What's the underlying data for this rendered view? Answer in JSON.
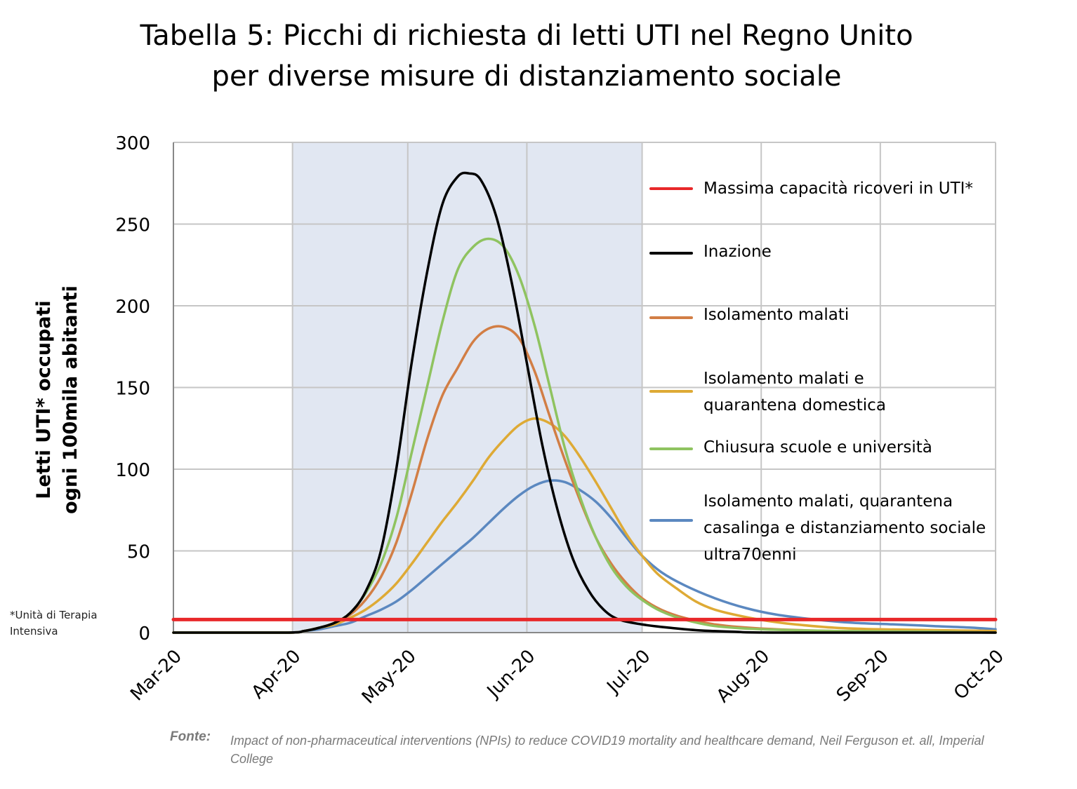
{
  "title": {
    "line1": "Tabella 5: Picchi di richiesta di letti UTI nel Regno Unito",
    "line2": "per diverse misure di distanziamento sociale"
  },
  "footnote": {
    "line1": "*Unità di Terapia",
    "line2": "Intensiva"
  },
  "source": {
    "label": "Fonte:",
    "text": "Impact of non-pharmaceutical interventions (NPIs) to reduce COVID19 mortality and healthcare demand, Neil Ferguson et. all, Imperial College"
  },
  "colors": {
    "capacity": "#e8282a",
    "inazione": "#000000",
    "isolamento": "#d27e45",
    "quarantena": "#deaa35",
    "scuole": "#8fc360",
    "anziani": "#5b88c0",
    "shade": "#e1e7f2",
    "grid": "#c6c6c6"
  },
  "chart_data": {
    "type": "line",
    "title": "Tabella 5: Picchi di richiesta di letti UTI nel Regno Unito per diverse misure di distanziamento sociale",
    "ylabel": "Letti UTI* occupati ogni 100mila abitanti",
    "xlabel": "",
    "ylim": [
      0,
      300
    ],
    "yticks": [
      0,
      50,
      100,
      150,
      200,
      250,
      300
    ],
    "xticks": [
      "Mar-20",
      "Apr-20",
      "May-20",
      "Jun-20",
      "Jul-20",
      "Aug-20",
      "Sep-20",
      "Oct-20"
    ],
    "shaded_range": [
      "Apr-01",
      "Jul-01"
    ],
    "grid": true,
    "legend_position": "right",
    "series": [
      {
        "name": "Massima capacità ricoveri in UTI*",
        "key": "capacity",
        "points": [
          [
            "Mar-01",
            8
          ],
          [
            "Oct-01",
            8
          ]
        ]
      },
      {
        "name": "Inazione",
        "key": "inazione",
        "points": [
          [
            "Mar-01",
            0
          ],
          [
            "Mar-30",
            0
          ],
          [
            "Apr-04",
            1
          ],
          [
            "Apr-08",
            3
          ],
          [
            "Apr-12",
            6
          ],
          [
            "Apr-16",
            12
          ],
          [
            "Apr-20",
            25
          ],
          [
            "Apr-24",
            50
          ],
          [
            "Apr-28",
            100
          ],
          [
            "May-02",
            165
          ],
          [
            "May-06",
            220
          ],
          [
            "May-10",
            262
          ],
          [
            "May-14",
            279
          ],
          [
            "May-17",
            281
          ],
          [
            "May-20",
            277
          ],
          [
            "May-24",
            255
          ],
          [
            "May-28",
            215
          ],
          [
            "Jun-01",
            165
          ],
          [
            "Jun-05",
            115
          ],
          [
            "Jun-09",
            75
          ],
          [
            "Jun-13",
            45
          ],
          [
            "Jun-17",
            26
          ],
          [
            "Jun-21",
            14
          ],
          [
            "Jun-25",
            8
          ],
          [
            "Jul-01",
            5
          ],
          [
            "Jul-08",
            3
          ],
          [
            "Jul-15",
            1.5
          ],
          [
            "Jul-25",
            0.5
          ],
          [
            "Aug-05",
            0
          ],
          [
            "Oct-01",
            0
          ]
        ]
      },
      {
        "name": "Isolamento malati",
        "key": "isolamento",
        "points": [
          [
            "Mar-01",
            0
          ],
          [
            "Mar-30",
            0
          ],
          [
            "Apr-04",
            1
          ],
          [
            "Apr-08",
            3
          ],
          [
            "Apr-12",
            6
          ],
          [
            "Apr-16",
            11
          ],
          [
            "Apr-20",
            20
          ],
          [
            "Apr-24",
            34
          ],
          [
            "Apr-28",
            55
          ],
          [
            "May-02",
            85
          ],
          [
            "May-06",
            118
          ],
          [
            "May-10",
            145
          ],
          [
            "May-14",
            162
          ],
          [
            "May-18",
            178
          ],
          [
            "May-22",
            186
          ],
          [
            "May-26",
            187
          ],
          [
            "May-30",
            180
          ],
          [
            "Jun-03",
            160
          ],
          [
            "Jun-07",
            132
          ],
          [
            "Jun-11",
            105
          ],
          [
            "Jun-15",
            80
          ],
          [
            "Jun-19",
            58
          ],
          [
            "Jun-23",
            42
          ],
          [
            "Jun-27",
            30
          ],
          [
            "Jul-01",
            21
          ],
          [
            "Jul-06",
            14
          ],
          [
            "Jul-12",
            9
          ],
          [
            "Jul-20",
            5
          ],
          [
            "Aug-01",
            2.5
          ],
          [
            "Aug-20",
            1
          ],
          [
            "Sep-15",
            0.5
          ],
          [
            "Oct-01",
            0
          ]
        ]
      },
      {
        "name": "Isolamento malati e quarantena domestica",
        "key": "quarantena",
        "points": [
          [
            "Mar-01",
            0
          ],
          [
            "Mar-30",
            0
          ],
          [
            "Apr-04",
            1
          ],
          [
            "Apr-08",
            3
          ],
          [
            "Apr-12",
            5
          ],
          [
            "Apr-16",
            9
          ],
          [
            "Apr-20",
            14
          ],
          [
            "Apr-24",
            21
          ],
          [
            "Apr-28",
            30
          ],
          [
            "May-02",
            42
          ],
          [
            "May-06",
            55
          ],
          [
            "May-10",
            68
          ],
          [
            "May-14",
            80
          ],
          [
            "May-18",
            93
          ],
          [
            "May-22",
            107
          ],
          [
            "May-26",
            118
          ],
          [
            "May-30",
            127
          ],
          [
            "Jun-03",
            131
          ],
          [
            "Jun-07",
            128
          ],
          [
            "Jun-11",
            120
          ],
          [
            "Jun-15",
            107
          ],
          [
            "Jun-19",
            92
          ],
          [
            "Jun-23",
            76
          ],
          [
            "Jun-27",
            60
          ],
          [
            "Jul-01",
            47
          ],
          [
            "Jul-05",
            36
          ],
          [
            "Jul-10",
            27
          ],
          [
            "Jul-15",
            19
          ],
          [
            "Jul-20",
            14
          ],
          [
            "Jul-27",
            10
          ],
          [
            "Aug-03",
            7
          ],
          [
            "Aug-10",
            5
          ],
          [
            "Aug-20",
            3
          ],
          [
            "Sep-01",
            2
          ],
          [
            "Sep-15",
            1.5
          ],
          [
            "Oct-01",
            1
          ]
        ]
      },
      {
        "name": "Chiusura scuole e università",
        "key": "scuole",
        "points": [
          [
            "Mar-01",
            0
          ],
          [
            "Mar-30",
            0
          ],
          [
            "Apr-04",
            1
          ],
          [
            "Apr-08",
            3
          ],
          [
            "Apr-12",
            6
          ],
          [
            "Apr-16",
            12
          ],
          [
            "Apr-20",
            24
          ],
          [
            "Apr-24",
            42
          ],
          [
            "Apr-28",
            70
          ],
          [
            "May-02",
            110
          ],
          [
            "May-06",
            150
          ],
          [
            "May-10",
            190
          ],
          [
            "May-14",
            222
          ],
          [
            "May-18",
            236
          ],
          [
            "May-22",
            241
          ],
          [
            "May-26",
            236
          ],
          [
            "May-30",
            218
          ],
          [
            "Jun-03",
            188
          ],
          [
            "Jun-07",
            150
          ],
          [
            "Jun-11",
            112
          ],
          [
            "Jun-15",
            82
          ],
          [
            "Jun-19",
            58
          ],
          [
            "Jun-23",
            40
          ],
          [
            "Jun-27",
            28
          ],
          [
            "Jul-01",
            20
          ],
          [
            "Jul-06",
            13
          ],
          [
            "Jul-12",
            8
          ],
          [
            "Jul-20",
            4
          ],
          [
            "Aug-01",
            2
          ],
          [
            "Aug-20",
            1
          ],
          [
            "Sep-15",
            0.5
          ],
          [
            "Oct-01",
            0
          ]
        ]
      },
      {
        "name": "Isolamento malati, quarantena casalinga e distanziamento sociale ultra70enni",
        "key": "anziani",
        "points": [
          [
            "Mar-01",
            0
          ],
          [
            "Mar-30",
            0
          ],
          [
            "Apr-04",
            1
          ],
          [
            "Apr-08",
            2
          ],
          [
            "Apr-12",
            4
          ],
          [
            "Apr-16",
            6
          ],
          [
            "Apr-20",
            10
          ],
          [
            "Apr-24",
            14
          ],
          [
            "Apr-28",
            19
          ],
          [
            "May-02",
            26
          ],
          [
            "May-06",
            34
          ],
          [
            "May-10",
            42
          ],
          [
            "May-14",
            50
          ],
          [
            "May-18",
            58
          ],
          [
            "May-22",
            67
          ],
          [
            "May-26",
            76
          ],
          [
            "May-30",
            84
          ],
          [
            "Jun-03",
            90
          ],
          [
            "Jun-07",
            93
          ],
          [
            "Jun-11",
            92
          ],
          [
            "Jun-15",
            87
          ],
          [
            "Jun-19",
            80
          ],
          [
            "Jun-23",
            70
          ],
          [
            "Jun-27",
            58
          ],
          [
            "Jul-01",
            47
          ],
          [
            "Jul-06",
            37
          ],
          [
            "Jul-12",
            29
          ],
          [
            "Jul-20",
            21
          ],
          [
            "Jul-28",
            15
          ],
          [
            "Aug-05",
            11
          ],
          [
            "Aug-15",
            8
          ],
          [
            "Aug-25",
            6
          ],
          [
            "Sep-05",
            5
          ],
          [
            "Sep-15",
            4
          ],
          [
            "Sep-25",
            3
          ],
          [
            "Oct-01",
            2
          ]
        ]
      }
    ]
  }
}
